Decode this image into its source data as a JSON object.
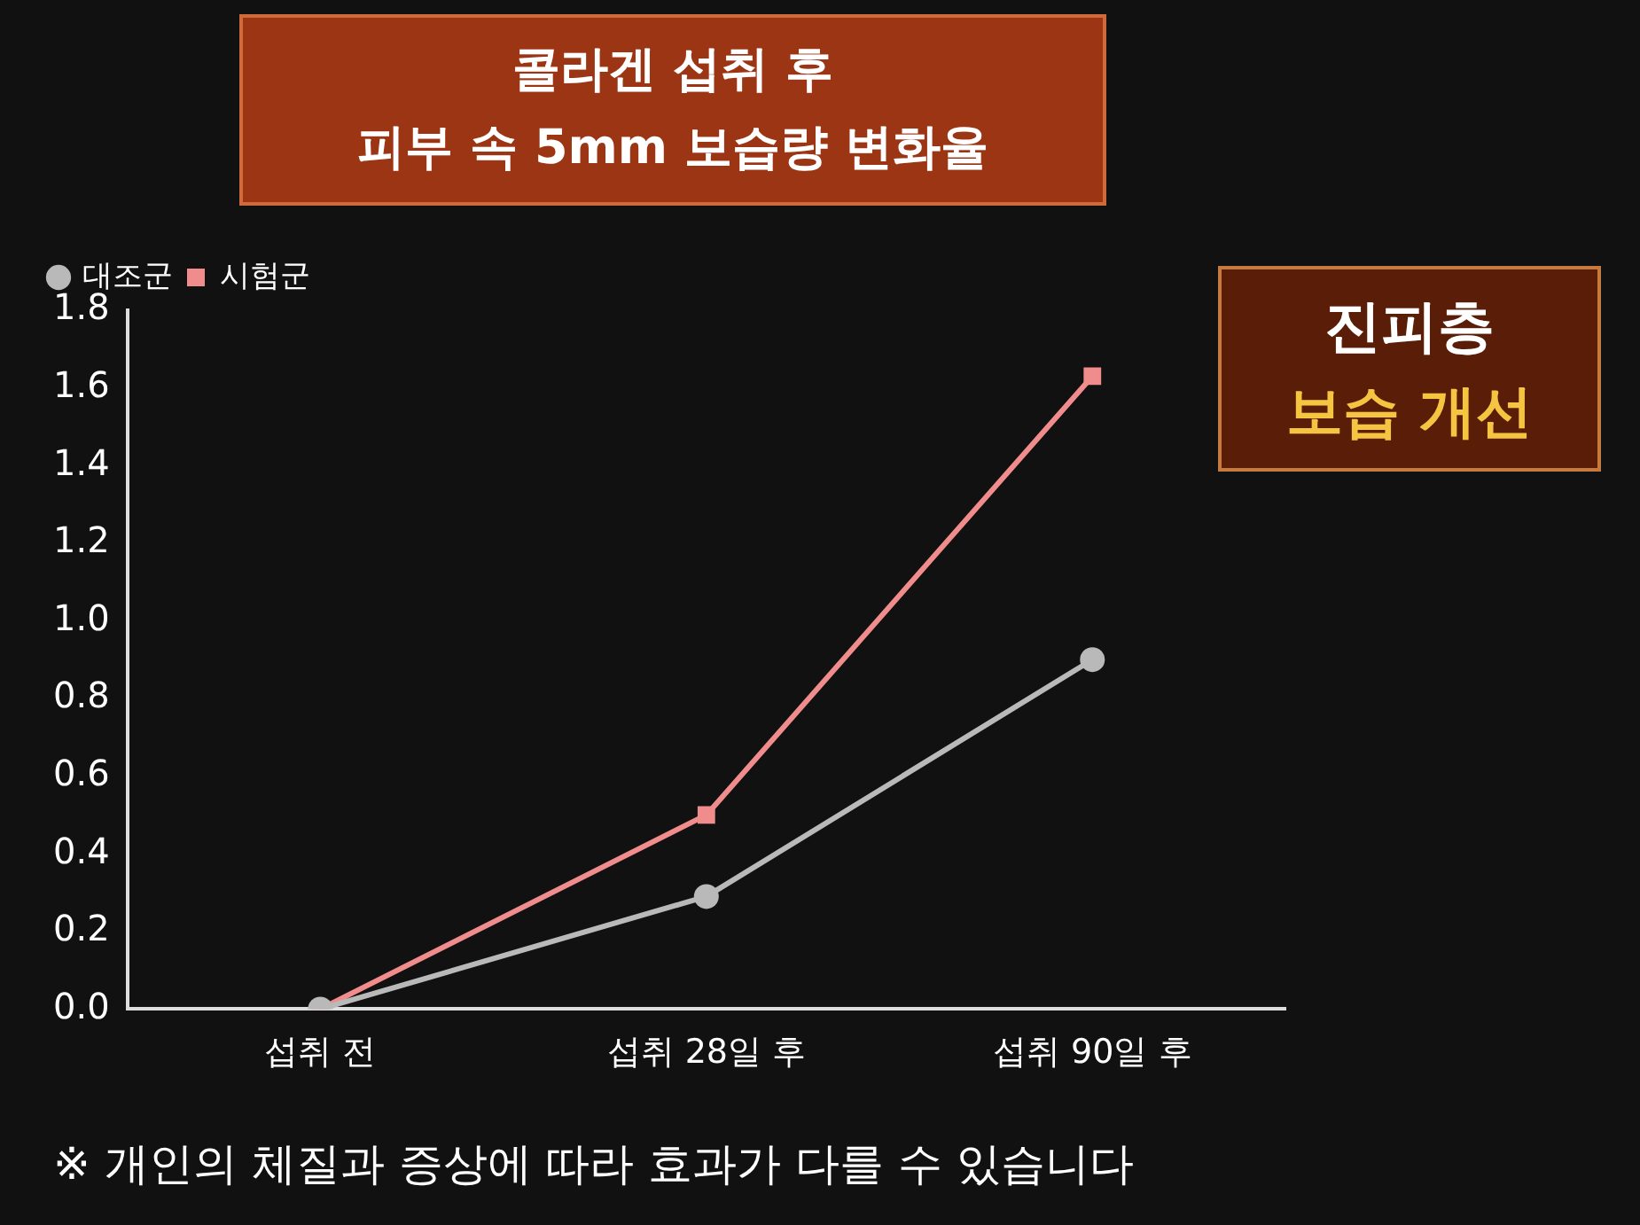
{
  "chart_data": {
    "type": "line",
    "title": "콜라겐 섭취 후\n피부 속 5mm 보습량 변화율",
    "categories": [
      "섭취 전",
      "섭취 28일 후",
      "섭취 90일 후"
    ],
    "series": [
      {
        "name": "대조군",
        "color": "#b9b9b9",
        "marker": "circle",
        "values": [
          0,
          0.29,
          0.9
        ]
      },
      {
        "name": "시험군",
        "color": "#f08c8c",
        "marker": "square",
        "values": [
          0,
          0.5,
          1.63
        ]
      }
    ],
    "ylim": [
      0,
      1.8
    ],
    "yticks": [
      {
        "value": 0,
        "label": "0.0"
      },
      {
        "value": 0.2,
        "label": "0.2"
      },
      {
        "value": 0.4,
        "label": "0.4"
      },
      {
        "value": 0.6,
        "label": "0.6"
      },
      {
        "value": 0.8,
        "label": "0.8"
      },
      {
        "value": 1,
        "label": "1.0"
      },
      {
        "value": 1.2,
        "label": "1.2"
      },
      {
        "value": 1.4,
        "label": "1.4"
      },
      {
        "value": 1.6,
        "label": "1.6"
      },
      {
        "value": 1.8,
        "label": "1.8"
      }
    ],
    "grid": false,
    "legend": "top left",
    "line_style": "solid",
    "annotations": [
      "진피층",
      "보습 개선",
      "※ 개인의 체질과 증상에 따라 효과가 다를 수 있습니다"
    ]
  }
}
